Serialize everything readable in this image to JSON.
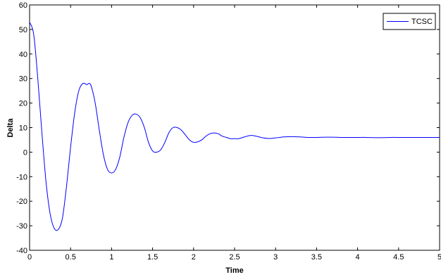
{
  "chart_data": {
    "type": "line",
    "xlabel": "Time",
    "ylabel": "Delta",
    "xlim": [
      0,
      5
    ],
    "ylim": [
      -40,
      60
    ],
    "xticks": [
      0,
      0.5,
      1,
      1.5,
      2,
      2.5,
      3,
      3.5,
      4,
      4.5,
      5
    ],
    "xtick_labels": [
      "0",
      "0.5",
      "1",
      "1.5",
      "2",
      "2.5",
      "3",
      "3.5",
      "4",
      "4.5",
      "5"
    ],
    "yticks": [
      -40,
      -30,
      -20,
      -10,
      0,
      10,
      20,
      30,
      40,
      50,
      60
    ],
    "ytick_labels": [
      "-40",
      "-30",
      "-20",
      "-10",
      "0",
      "10",
      "20",
      "30",
      "40",
      "50",
      "60"
    ],
    "grid": false,
    "legend_position": "top-right",
    "series": [
      {
        "name": "TCSC",
        "color": "#0000ff",
        "x": [
          0,
          0.05,
          0.1,
          0.15,
          0.2,
          0.25,
          0.3,
          0.35,
          0.4,
          0.45,
          0.5,
          0.55,
          0.6,
          0.65,
          0.7,
          0.72,
          0.75,
          0.8,
          0.85,
          0.9,
          0.95,
          1.0,
          1.05,
          1.1,
          1.15,
          1.2,
          1.25,
          1.3,
          1.35,
          1.4,
          1.45,
          1.5,
          1.55,
          1.6,
          1.65,
          1.7,
          1.75,
          1.8,
          1.85,
          1.9,
          1.95,
          2.0,
          2.05,
          2.1,
          2.15,
          2.2,
          2.25,
          2.3,
          2.35,
          2.4,
          2.45,
          2.5,
          2.55,
          2.6,
          2.65,
          2.7,
          2.75,
          2.8,
          2.85,
          2.9,
          2.95,
          3.0,
          3.05,
          3.1,
          3.2,
          3.3,
          3.4,
          3.5,
          3.6,
          3.7,
          3.8,
          3.9,
          4.0,
          4.1,
          4.2,
          4.3,
          4.4,
          4.5,
          4.6,
          4.7,
          4.8,
          4.9,
          5.0
        ],
        "y": [
          53,
          48,
          30,
          8,
          -12,
          -25,
          -31,
          -31.5,
          -27,
          -14,
          2,
          16,
          25,
          28,
          27.5,
          28,
          27,
          20,
          9,
          -1,
          -7,
          -8.5,
          -7,
          -2,
          6,
          12,
          15,
          15.5,
          14,
          10,
          4,
          0.5,
          0,
          1,
          4,
          8,
          10,
          10,
          9,
          7,
          5,
          4,
          4.2,
          5,
          6.5,
          7.5,
          7.8,
          7.5,
          6.5,
          6,
          5.5,
          5.5,
          5.5,
          6,
          6.5,
          6.8,
          6.6,
          6.2,
          5.8,
          5.6,
          5.6,
          5.8,
          6.0,
          6.2,
          6.3,
          6.2,
          6.0,
          6.0,
          6.1,
          6.1,
          6.0,
          6.0,
          6.0,
          6.0,
          5.9,
          5.9,
          6.0,
          6.0,
          6.0,
          6.0,
          6.0,
          6.0,
          6.0
        ]
      }
    ]
  }
}
